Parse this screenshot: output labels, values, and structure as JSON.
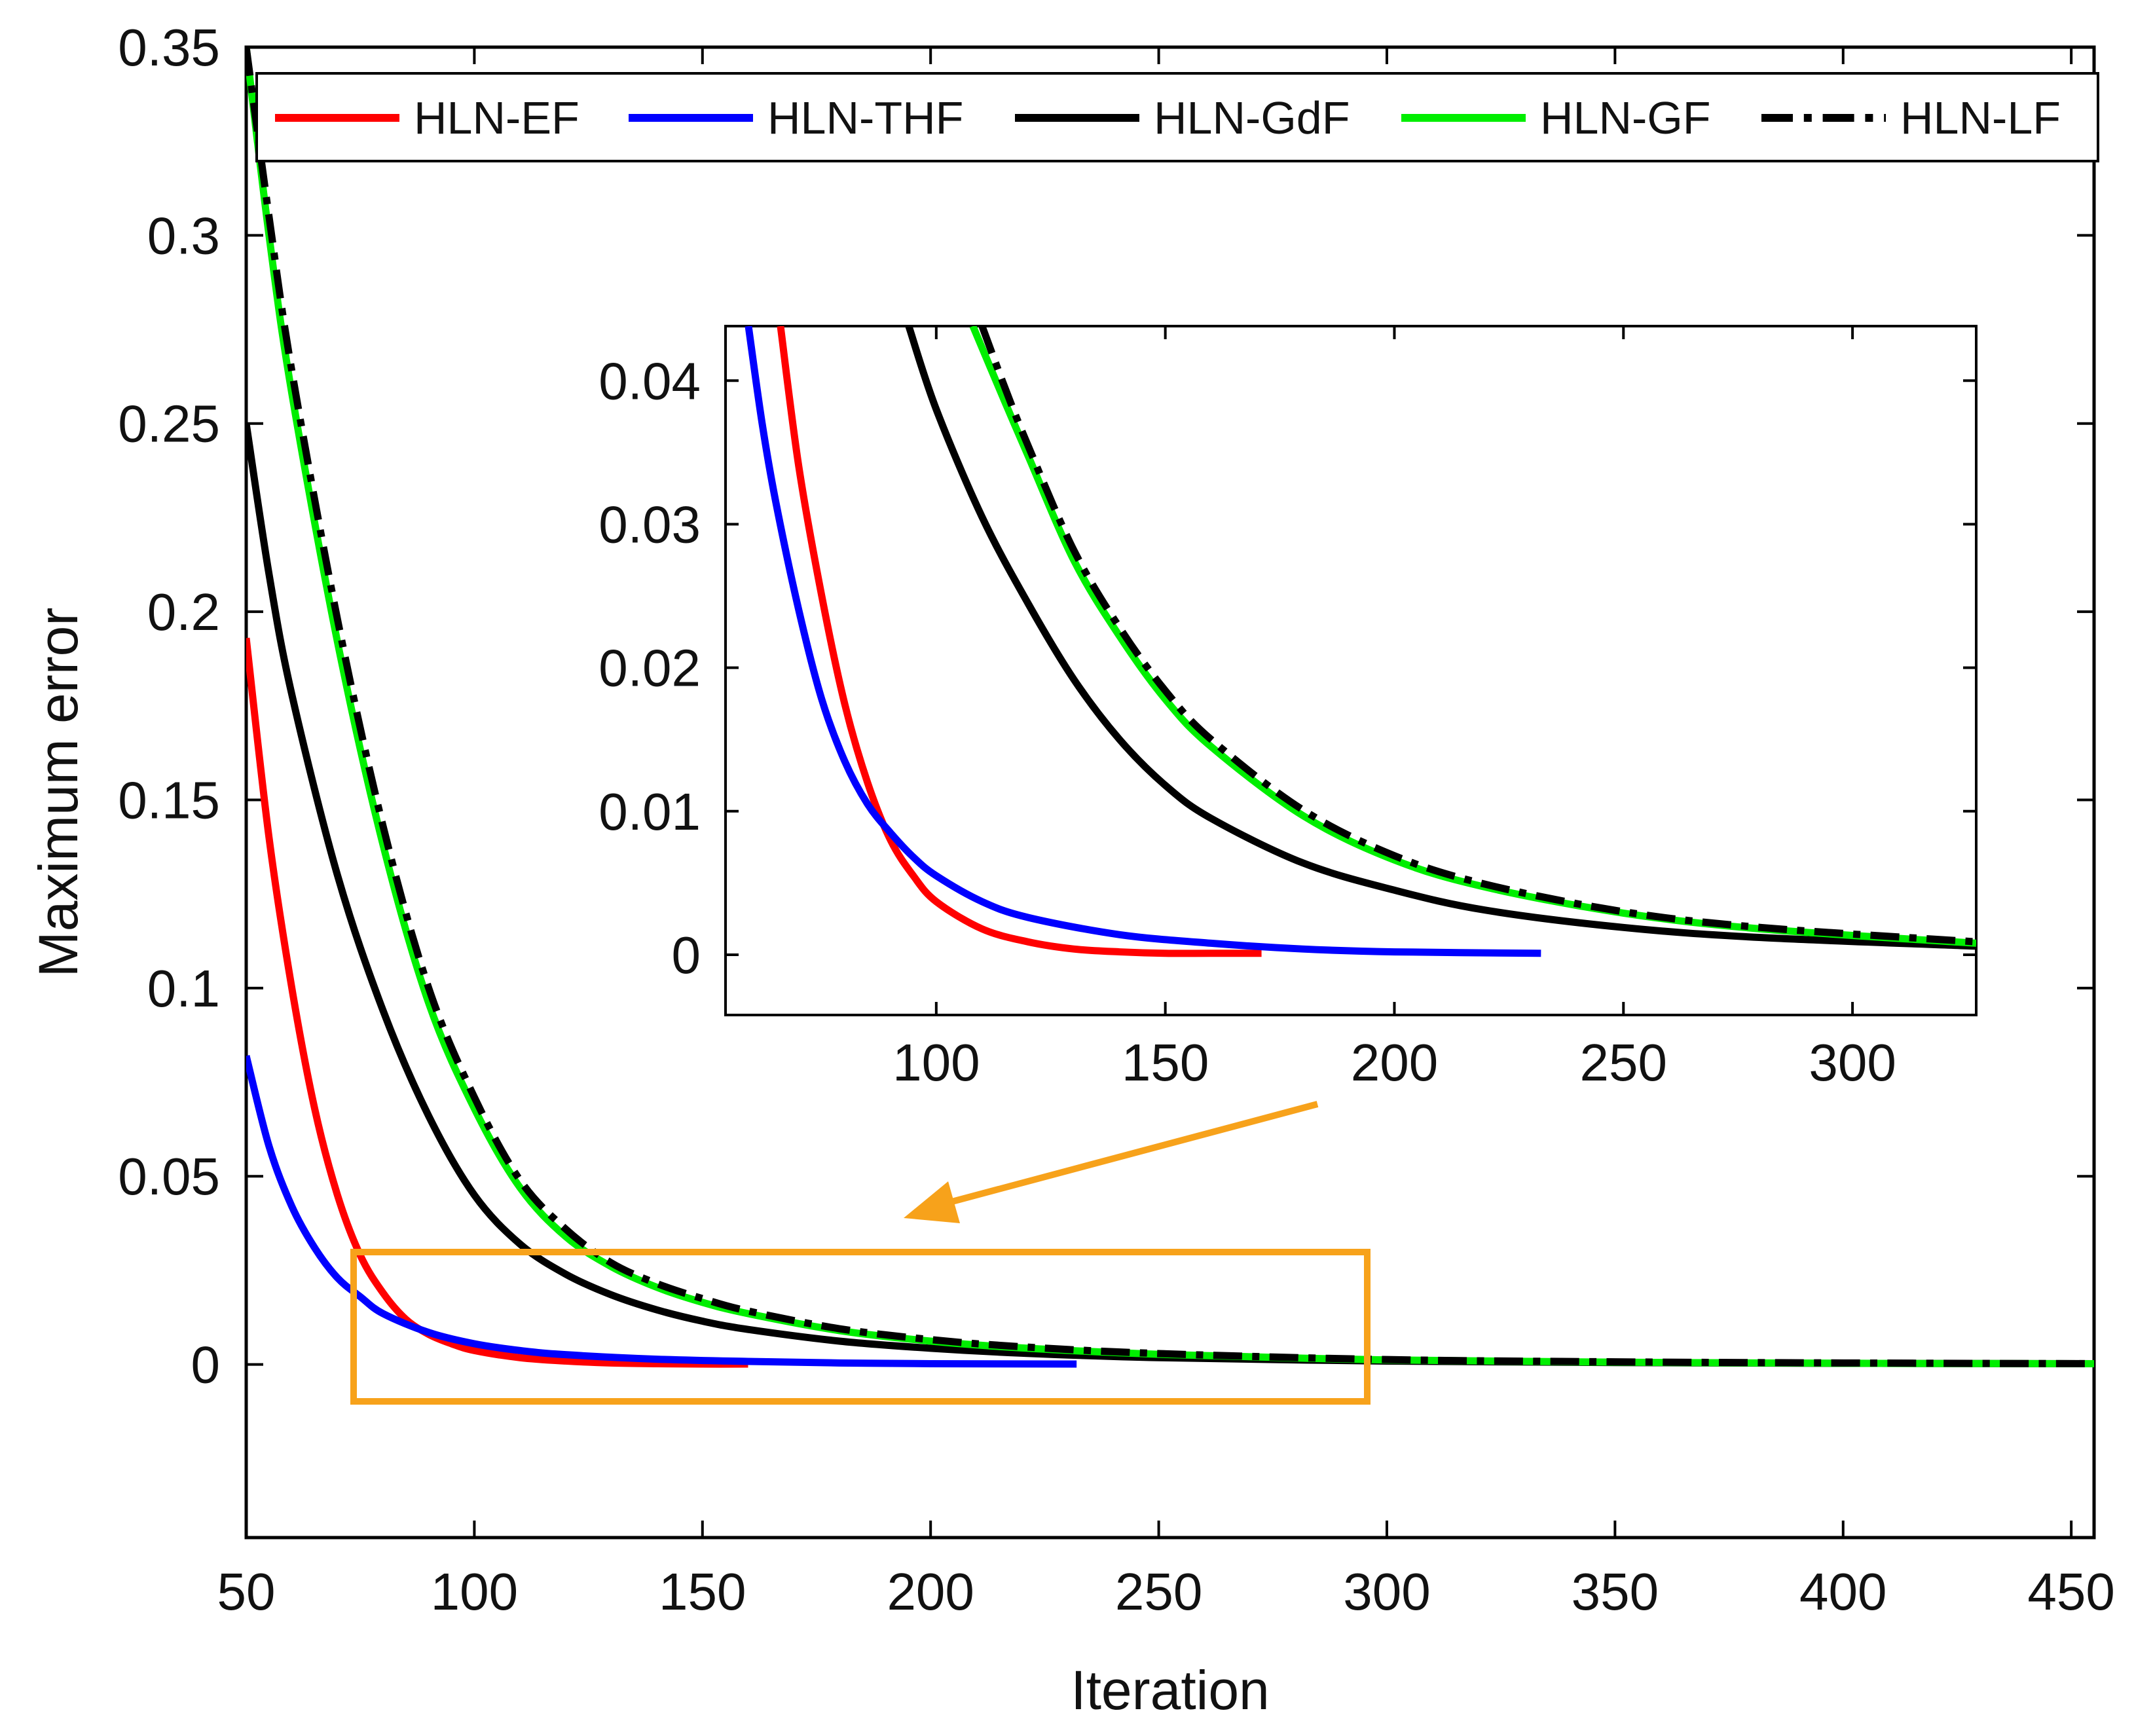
{
  "chart_data": [
    {
      "id": "main",
      "type": "line",
      "xlabel": "Iteration",
      "ylabel": "Maximum error",
      "xlim": [
        50,
        455
      ],
      "ylim": [
        -0.046,
        0.35
      ],
      "xticks": [
        50,
        100,
        150,
        200,
        250,
        300,
        350,
        400,
        450
      ],
      "xtick_labels": [
        "50",
        "100",
        "150",
        "200",
        "250",
        "300",
        "350",
        "400",
        "450"
      ],
      "yticks": [
        0,
        0.05,
        0.1,
        0.15,
        0.2,
        0.25,
        0.3,
        0.35
      ],
      "ytick_labels": [
        "0",
        "0.05",
        "0.1",
        "0.15",
        "0.2",
        "0.25",
        "0.3",
        "0.35"
      ],
      "grid": false,
      "legend_position": "top",
      "series": [
        {
          "name": "HLN-EF",
          "color": "#ff0000",
          "dash": "solid",
          "x": [
            50,
            55,
            60,
            65,
            70,
            75,
            80,
            85,
            90,
            95,
            100,
            110,
            120,
            130,
            140,
            150,
            160
          ],
          "y": [
            0.193,
            0.14,
            0.1,
            0.068,
            0.045,
            0.029,
            0.019,
            0.012,
            0.008,
            0.0055,
            0.0037,
            0.0018,
            0.0009,
            0.0004,
            0.0002,
            0.0001,
            0.0001
          ]
        },
        {
          "name": "HLN-THF",
          "color": "#0000ff",
          "dash": "solid",
          "x": [
            50,
            55,
            60,
            65,
            70,
            75,
            80,
            90,
            100,
            110,
            120,
            140,
            160,
            180,
            200,
            232
          ],
          "y": [
            0.082,
            0.058,
            0.042,
            0.031,
            0.023,
            0.018,
            0.0135,
            0.0085,
            0.0055,
            0.0037,
            0.0026,
            0.0014,
            0.0008,
            0.0004,
            0.0002,
            0.0001
          ]
        },
        {
          "name": "HLN-GdF",
          "color": "#000000",
          "dash": "solid",
          "x": [
            50,
            55,
            60,
            70,
            80,
            90,
            100,
            110,
            120,
            130,
            140,
            150,
            160,
            180,
            200,
            220,
            250,
            300,
            350,
            400,
            455
          ],
          "y": [
            0.25,
            0.21,
            0.178,
            0.13,
            0.094,
            0.066,
            0.045,
            0.032,
            0.024,
            0.0185,
            0.0145,
            0.0115,
            0.0093,
            0.0062,
            0.0043,
            0.003,
            0.0018,
            0.0009,
            0.0005,
            0.0003,
            0.0002
          ]
        },
        {
          "name": "HLN-GF",
          "color": "#00ee00",
          "dash": "solid",
          "x": [
            50,
            55,
            60,
            70,
            80,
            90,
            100,
            110,
            120,
            130,
            140,
            150,
            160,
            180,
            200,
            220,
            250,
            300,
            350,
            400,
            455
          ],
          "y": [
            0.35,
            0.3,
            0.258,
            0.192,
            0.138,
            0.096,
            0.068,
            0.047,
            0.034,
            0.026,
            0.0205,
            0.0165,
            0.0135,
            0.009,
            0.0062,
            0.0044,
            0.0027,
            0.0012,
            0.0006,
            0.0003,
            0.0002
          ]
        },
        {
          "name": "HLN-LF",
          "color": "#000000",
          "dash": "dashdot",
          "x": [
            50,
            55,
            60,
            70,
            80,
            90,
            100,
            110,
            120,
            130,
            140,
            150,
            160,
            180,
            200,
            220,
            250,
            300,
            350,
            400,
            455
          ],
          "y": [
            0.35,
            0.305,
            0.264,
            0.198,
            0.143,
            0.1,
            0.071,
            0.049,
            0.036,
            0.027,
            0.0215,
            0.0175,
            0.0142,
            0.0095,
            0.0066,
            0.0047,
            0.0029,
            0.0013,
            0.0007,
            0.0004,
            0.0002
          ]
        }
      ]
    },
    {
      "id": "inset",
      "type": "line",
      "title": "",
      "xlim": [
        54,
        327
      ],
      "ylim": [
        -0.0042,
        0.0438
      ],
      "xticks": [
        100,
        150,
        200,
        250,
        300
      ],
      "xtick_labels": [
        "100",
        "150",
        "200",
        "250",
        "300"
      ],
      "yticks": [
        0,
        0.01,
        0.02,
        0.03,
        0.04
      ],
      "ytick_labels": [
        "0",
        "0.01",
        "0.02",
        "0.03",
        "0.04"
      ],
      "grid": false,
      "series": [
        {
          "name": "HLN-EF",
          "color": "#ff0000",
          "dash": "solid",
          "x": [
            66,
            70,
            75,
            80,
            85,
            90,
            95,
            100,
            110,
            120,
            130,
            140,
            150,
            160,
            171
          ],
          "y": [
            0.0438,
            0.034,
            0.025,
            0.0175,
            0.012,
            0.008,
            0.0055,
            0.0037,
            0.0018,
            0.0009,
            0.0004,
            0.0002,
            0.0001,
            0.0001,
            0.0001
          ]
        },
        {
          "name": "HLN-THF",
          "color": "#0000ff",
          "dash": "solid",
          "x": [
            59,
            62,
            65,
            70,
            75,
            80,
            85,
            90,
            95,
            100,
            110,
            120,
            140,
            160,
            180,
            200,
            232
          ],
          "y": [
            0.0438,
            0.037,
            0.0315,
            0.024,
            0.0178,
            0.0135,
            0.0105,
            0.0085,
            0.0068,
            0.0055,
            0.0037,
            0.0026,
            0.0014,
            0.0008,
            0.0004,
            0.0002,
            0.0001
          ]
        },
        {
          "name": "HLN-GdF",
          "color": "#000000",
          "dash": "solid",
          "x": [
            94,
            100,
            110,
            120,
            130,
            140,
            150,
            160,
            180,
            200,
            220,
            250,
            280,
            327
          ],
          "y": [
            0.0438,
            0.038,
            0.0305,
            0.0245,
            0.0192,
            0.015,
            0.0118,
            0.0095,
            0.0064,
            0.0045,
            0.0031,
            0.0019,
            0.0012,
            0.0006
          ]
        },
        {
          "name": "HLN-GF",
          "color": "#00ee00",
          "dash": "solid",
          "x": [
            108,
            115,
            120,
            130,
            140,
            150,
            160,
            180,
            200,
            220,
            250,
            280,
            327
          ],
          "y": [
            0.0438,
            0.0385,
            0.0348,
            0.0275,
            0.0222,
            0.0178,
            0.0145,
            0.0097,
            0.0066,
            0.0047,
            0.0029,
            0.0018,
            0.0008
          ]
        },
        {
          "name": "HLN-LF",
          "color": "#000000",
          "dash": "dashdot",
          "x": [
            110,
            115,
            120,
            130,
            140,
            150,
            160,
            180,
            200,
            220,
            250,
            280,
            327
          ],
          "y": [
            0.0438,
            0.0395,
            0.0355,
            0.0282,
            0.0228,
            0.0184,
            0.015,
            0.0101,
            0.0069,
            0.0049,
            0.003,
            0.0019,
            0.0009
          ]
        }
      ]
    }
  ],
  "annotation": {
    "color": "#f7a21b"
  }
}
